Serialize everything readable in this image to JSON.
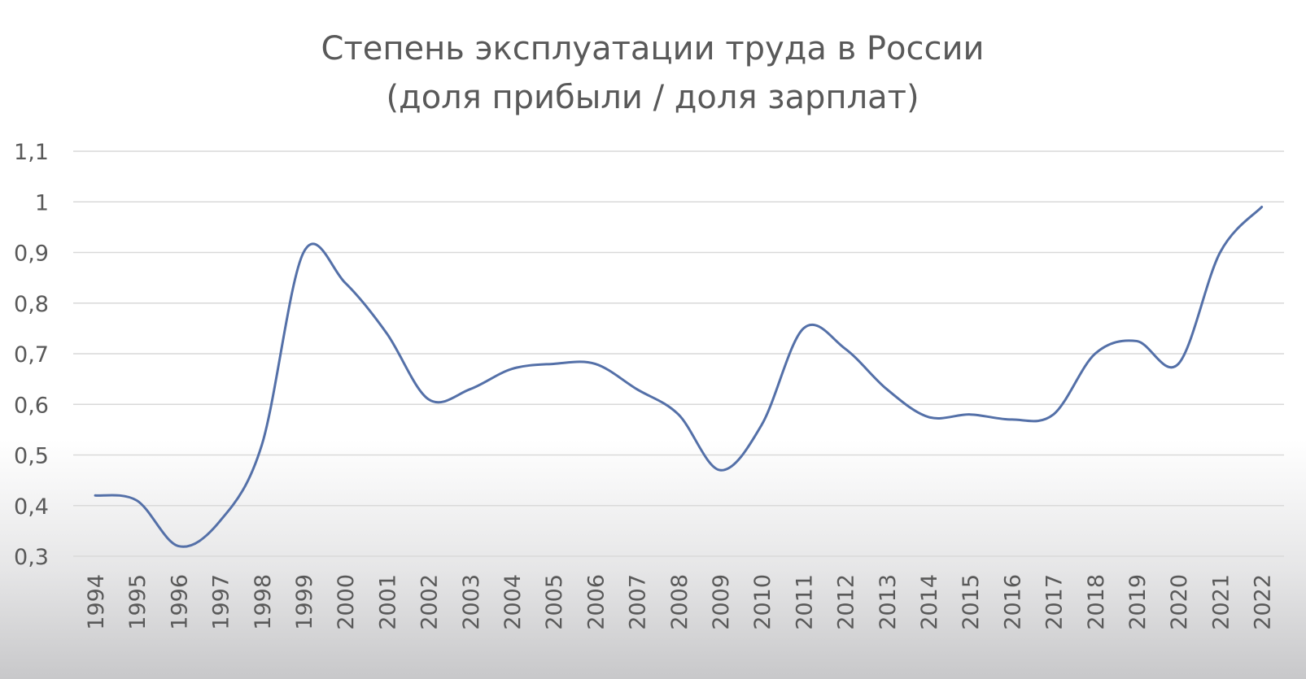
{
  "chart_data": {
    "type": "line",
    "title": "Степень эксплуатации труда в России",
    "subtitle": "(доля прибыли / доля зарплат)",
    "xlabel": "",
    "ylabel": "",
    "ylim": [
      0.3,
      1.1
    ],
    "yticks": [
      0.3,
      0.4,
      0.5,
      0.6,
      0.7,
      0.8,
      0.9,
      1.0,
      1.1
    ],
    "ytick_labels": [
      "0,3",
      "0,4",
      "0,5",
      "0,6",
      "0,7",
      "0,8",
      "0,9",
      "1",
      "1,1"
    ],
    "categories": [
      "1994",
      "1995",
      "1996",
      "1997",
      "1998",
      "1999",
      "2000",
      "2001",
      "2002",
      "2003",
      "2004",
      "2005",
      "2006",
      "2007",
      "2008",
      "2009",
      "2010",
      "2011",
      "2012",
      "2013",
      "2014",
      "2015",
      "2016",
      "2017",
      "2018",
      "2019",
      "2020",
      "2021",
      "2022"
    ],
    "series": [
      {
        "color": "#5470a8",
        "values": [
          0.42,
          0.41,
          0.32,
          0.37,
          0.52,
          0.9,
          0.84,
          0.74,
          0.61,
          0.63,
          0.67,
          0.68,
          0.68,
          0.63,
          0.58,
          0.47,
          0.56,
          0.75,
          0.71,
          0.63,
          0.575,
          0.58,
          0.57,
          0.58,
          0.7,
          0.725,
          0.68,
          0.9,
          0.99
        ]
      }
    ],
    "grid": true,
    "legend": "none"
  }
}
